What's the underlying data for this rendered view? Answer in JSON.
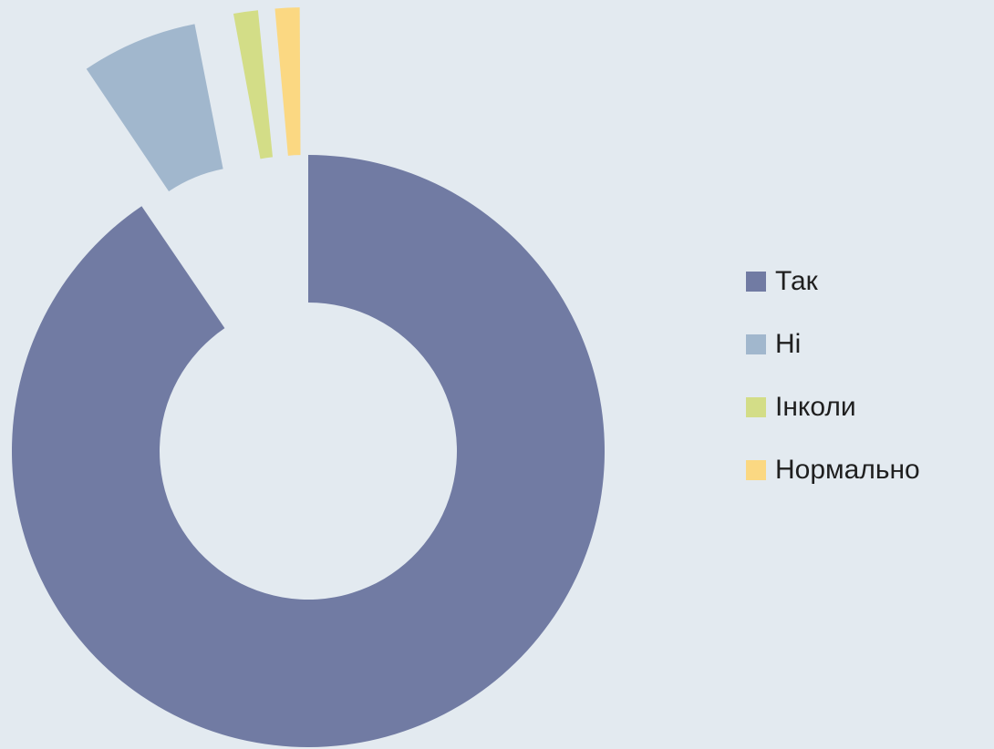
{
  "chart_data": {
    "type": "pie",
    "variant": "exploded-donut",
    "categories": [
      "Так",
      "Ні",
      "Інколи",
      "Нормально"
    ],
    "values": [
      90.5,
      6.5,
      1.5,
      1.5
    ],
    "colors": [
      "#717ba3",
      "#a1b7cd",
      "#d3dd87",
      "#fbd882"
    ],
    "legend_position": "right",
    "title": ""
  }
}
